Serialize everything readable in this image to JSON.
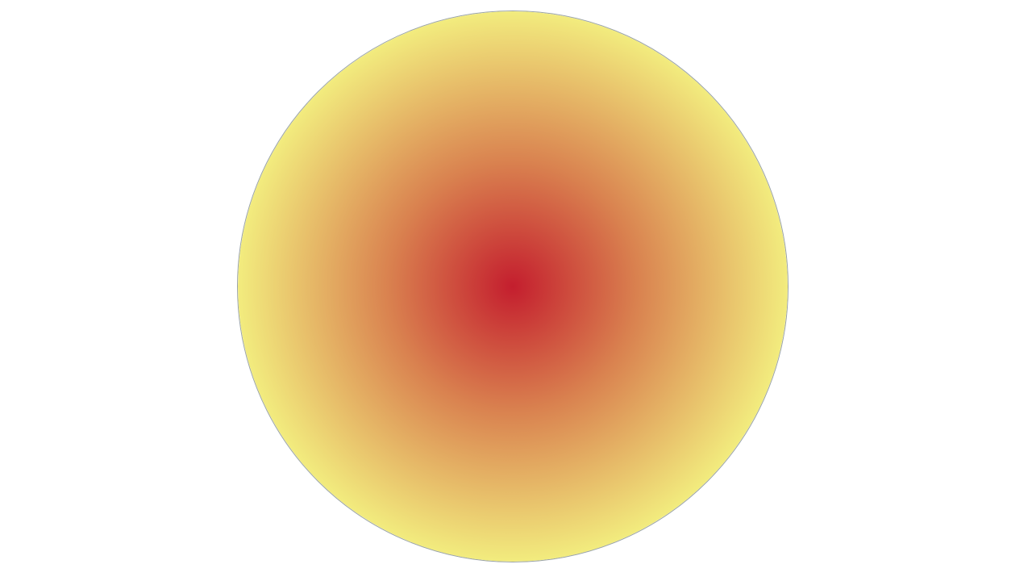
{
  "scene": {
    "background_color": "#ffffff",
    "orb": {
      "shape": "circle",
      "fill": "radial-gradient",
      "center_color": "#c41e2e",
      "mid_color": "#d9814f",
      "edge_color": "#f2ec7e",
      "outline_color": "#9aa3a8"
    }
  }
}
